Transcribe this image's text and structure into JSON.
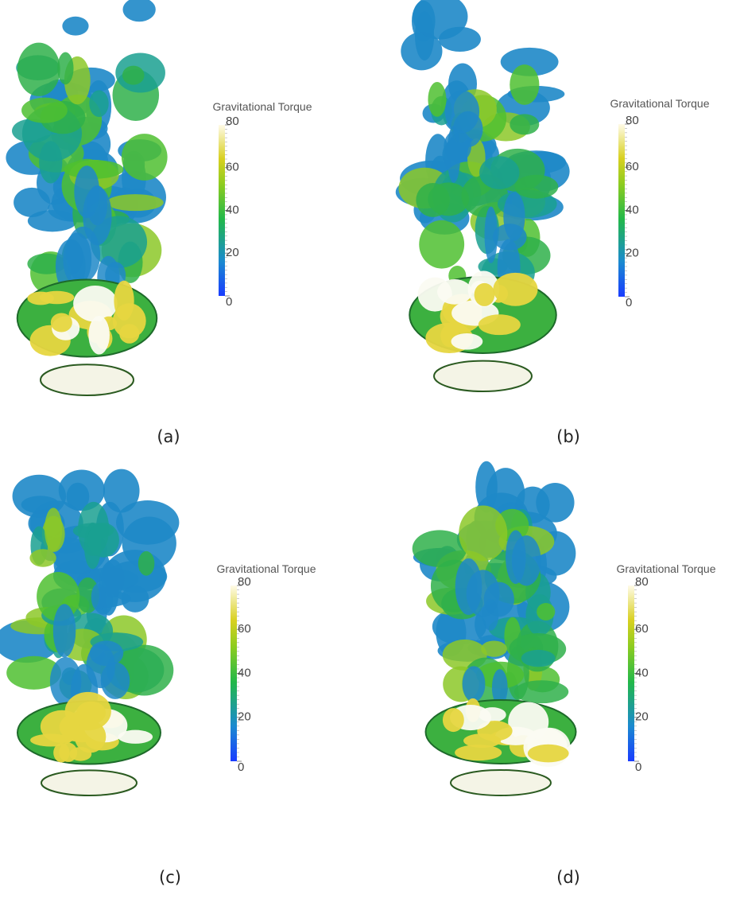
{
  "panels": [
    {
      "label": "(a)",
      "colorbar": {
        "title": "Gravitational Torque",
        "lim": [
          0,
          80
        ],
        "ticks": [
          0,
          20,
          40,
          60,
          80
        ]
      }
    },
    {
      "label": "(b)",
      "colorbar": {
        "title": "Gravitational Torque",
        "lim": [
          0,
          80
        ],
        "ticks": [
          0,
          20,
          40,
          60,
          80
        ]
      }
    },
    {
      "label": "(c)",
      "colorbar": {
        "title": "Gravitational Torque",
        "lim": [
          0,
          80
        ],
        "ticks": [
          0,
          20,
          40,
          60,
          80
        ]
      }
    },
    {
      "label": "(d)",
      "colorbar": {
        "title": "Gravitational Torque",
        "lim": [
          0,
          80
        ],
        "ticks": [
          0,
          20,
          40,
          60,
          80
        ]
      }
    }
  ]
}
